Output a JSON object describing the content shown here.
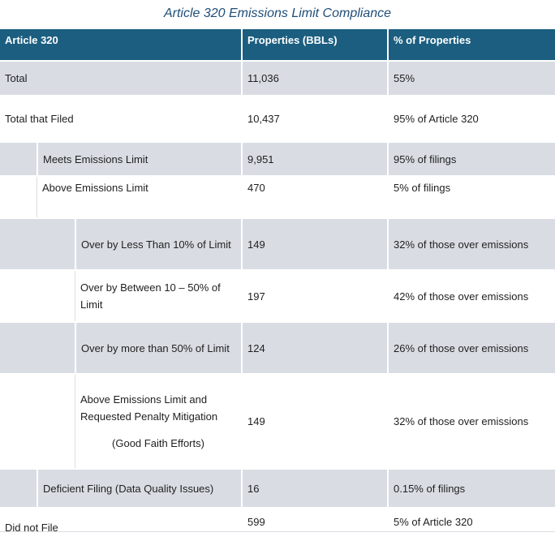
{
  "title": "Article 320 Emissions Limit Compliance",
  "headers": [
    "Article 320",
    "Properties (BBLs)",
    "% of Properties"
  ],
  "rows": [
    {
      "label": "Total",
      "properties": "11,036",
      "percent": "55%"
    },
    {
      "label": "Total that Filed",
      "properties": "10,437",
      "percent": "95% of Article 320"
    },
    {
      "label": "Meets Emissions Limit",
      "properties": "9,951",
      "percent": "95% of filings"
    },
    {
      "label": "Above Emissions Limit",
      "properties": "470",
      "percent": "5% of filings"
    },
    {
      "label": "Over by Less Than 10% of Limit",
      "properties": "149",
      "percent": "32% of those over emissions"
    },
    {
      "label": "Over by Between 10 – 50% of Limit",
      "properties": "197",
      "percent": "42% of those over emissions"
    },
    {
      "label": "Over by more than 50% of Limit",
      "properties": "124",
      "percent": "26% of those over emissions"
    },
    {
      "label": "Above Emissions Limit and Requested Penalty Mitigation",
      "note": "(Good Faith Efforts)",
      "properties": "149",
      "percent": "32% of those over emissions"
    },
    {
      "label": "Deficient Filing (Data Quality Issues)",
      "properties": "16",
      "percent": "0.15% of filings"
    },
    {
      "label": "Did not File",
      "properties": "599",
      "percent": "5% of Article 320"
    }
  ]
}
